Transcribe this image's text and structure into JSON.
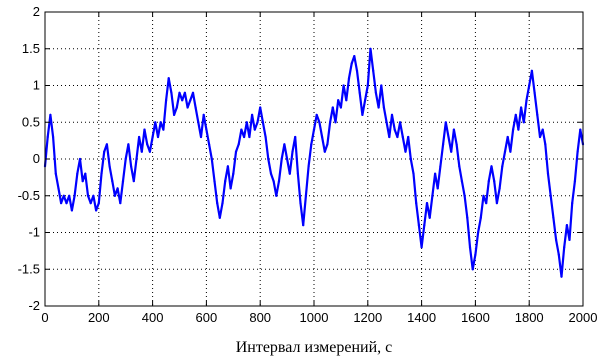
{
  "chart_data": {
    "type": "line",
    "title": "",
    "xlabel": "Интервал измерений, с",
    "ylabel": "",
    "xlim": [
      0,
      2000
    ],
    "ylim": [
      -2,
      2
    ],
    "grid": true,
    "grid_style": "dotted",
    "x_ticks": [
      "0",
      "200",
      "400",
      "600",
      "800",
      "1000",
      "1200",
      "1400",
      "1600",
      "1800",
      "2000"
    ],
    "y_ticks": [
      "2",
      "1.5",
      "1",
      "0.5",
      "0",
      "-0.5",
      "-1",
      "-1.5",
      "-2"
    ],
    "series": [
      {
        "color": "#0000ff",
        "x": [
          0,
          10,
          20,
          30,
          40,
          50,
          60,
          70,
          80,
          90,
          100,
          110,
          120,
          130,
          140,
          150,
          160,
          170,
          180,
          190,
          200,
          210,
          220,
          230,
          240,
          250,
          260,
          270,
          280,
          290,
          300,
          310,
          320,
          330,
          340,
          350,
          360,
          370,
          380,
          390,
          400,
          410,
          420,
          430,
          440,
          450,
          460,
          470,
          480,
          490,
          500,
          510,
          520,
          530,
          540,
          550,
          560,
          570,
          580,
          590,
          600,
          610,
          620,
          630,
          640,
          650,
          660,
          670,
          680,
          690,
          700,
          710,
          720,
          730,
          740,
          750,
          760,
          770,
          780,
          790,
          800,
          810,
          820,
          830,
          840,
          850,
          860,
          870,
          880,
          890,
          900,
          910,
          920,
          930,
          940,
          950,
          960,
          970,
          980,
          990,
          1000,
          1010,
          1020,
          1030,
          1040,
          1050,
          1060,
          1070,
          1080,
          1090,
          1100,
          1110,
          1120,
          1130,
          1140,
          1150,
          1160,
          1170,
          1180,
          1190,
          1200,
          1210,
          1220,
          1230,
          1240,
          1250,
          1260,
          1270,
          1280,
          1290,
          1300,
          1310,
          1320,
          1330,
          1340,
          1350,
          1360,
          1370,
          1380,
          1390,
          1400,
          1410,
          1420,
          1430,
          1440,
          1450,
          1460,
          1470,
          1480,
          1490,
          1500,
          1510,
          1520,
          1530,
          1540,
          1550,
          1560,
          1570,
          1580,
          1590,
          1600,
          1610,
          1620,
          1630,
          1640,
          1650,
          1660,
          1670,
          1680,
          1690,
          1700,
          1710,
          1720,
          1730,
          1740,
          1750,
          1760,
          1770,
          1780,
          1790,
          1800,
          1810,
          1820,
          1830,
          1840,
          1850,
          1860,
          1870,
          1880,
          1890,
          1900,
          1910,
          1920,
          1930,
          1940,
          1950,
          1960,
          1970,
          1980,
          1990,
          2000
        ],
        "y": [
          -0.1,
          0.3,
          0.6,
          0.3,
          -0.2,
          -0.4,
          -0.6,
          -0.5,
          -0.6,
          -0.5,
          -0.7,
          -0.5,
          -0.2,
          0.0,
          -0.3,
          -0.2,
          -0.5,
          -0.6,
          -0.5,
          -0.7,
          -0.6,
          -0.2,
          0.1,
          0.2,
          -0.1,
          -0.3,
          -0.5,
          -0.4,
          -0.6,
          -0.3,
          0.0,
          0.2,
          -0.1,
          -0.3,
          0.0,
          0.3,
          0.1,
          0.4,
          0.2,
          0.1,
          0.3,
          0.5,
          0.3,
          0.5,
          0.4,
          0.8,
          1.1,
          0.9,
          0.6,
          0.7,
          0.9,
          0.8,
          0.9,
          0.7,
          0.8,
          0.9,
          0.7,
          0.5,
          0.3,
          0.6,
          0.4,
          0.2,
          0.0,
          -0.3,
          -0.6,
          -0.8,
          -0.6,
          -0.3,
          -0.1,
          -0.4,
          -0.2,
          0.1,
          0.2,
          0.4,
          0.3,
          0.5,
          0.3,
          0.6,
          0.4,
          0.5,
          0.7,
          0.5,
          0.3,
          0.0,
          -0.2,
          -0.3,
          -0.5,
          -0.3,
          0.0,
          0.2,
          0.0,
          -0.2,
          0.1,
          0.3,
          -0.2,
          -0.6,
          -0.9,
          -0.5,
          -0.1,
          0.2,
          0.4,
          0.6,
          0.5,
          0.3,
          0.1,
          0.2,
          0.5,
          0.7,
          0.5,
          0.8,
          0.7,
          1.0,
          0.8,
          1.1,
          1.3,
          1.4,
          1.2,
          0.9,
          0.6,
          0.8,
          1.0,
          1.5,
          1.2,
          0.9,
          0.7,
          1.0,
          0.7,
          0.5,
          0.3,
          0.6,
          0.4,
          0.3,
          0.5,
          0.3,
          0.1,
          0.3,
          0.0,
          -0.2,
          -0.6,
          -0.9,
          -1.2,
          -0.9,
          -0.6,
          -0.8,
          -0.5,
          -0.2,
          -0.4,
          -0.1,
          0.2,
          0.5,
          0.3,
          0.1,
          0.4,
          0.2,
          -0.1,
          -0.3,
          -0.5,
          -0.8,
          -1.2,
          -1.5,
          -1.3,
          -1.0,
          -0.8,
          -0.5,
          -0.6,
          -0.3,
          -0.1,
          -0.3,
          -0.6,
          -0.4,
          -0.1,
          0.1,
          0.3,
          0.1,
          0.4,
          0.6,
          0.4,
          0.7,
          0.5,
          0.8,
          1.0,
          1.2,
          0.9,
          0.6,
          0.3,
          0.4,
          0.2,
          -0.2,
          -0.5,
          -0.8,
          -1.1,
          -1.3,
          -1.6,
          -1.2,
          -0.9,
          -1.1,
          -0.6,
          -0.3,
          0.1,
          0.4,
          0.2
        ]
      }
    ]
  }
}
